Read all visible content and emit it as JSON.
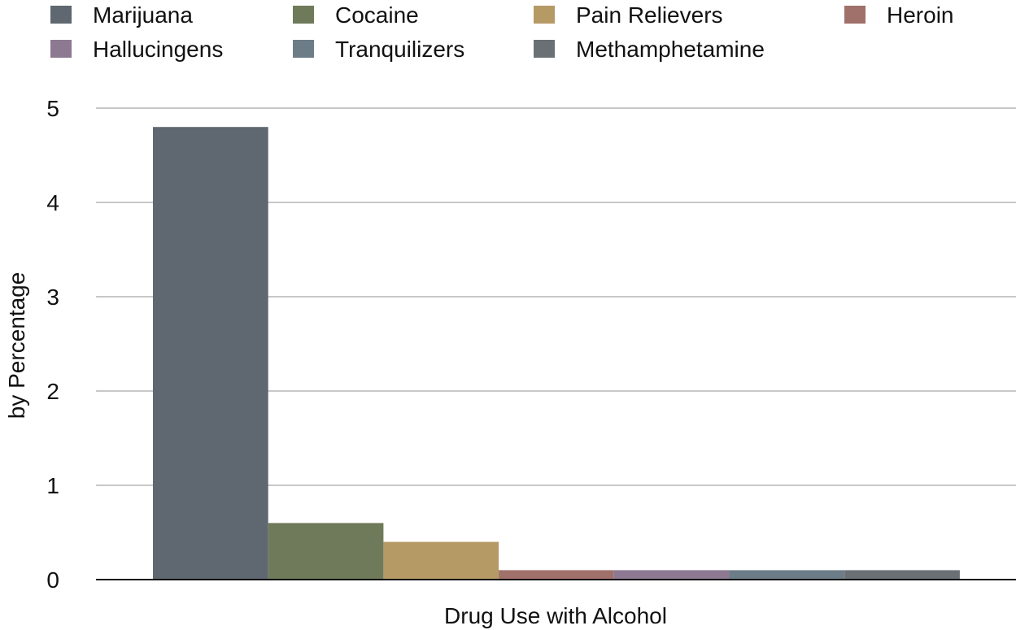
{
  "chart_data": {
    "type": "bar",
    "title": "",
    "xlabel": "Drug Use with Alcohol",
    "ylabel": "by Percentage",
    "ylim": [
      0,
      5
    ],
    "yticks": [
      0,
      1,
      2,
      3,
      4,
      5
    ],
    "grid": true,
    "legend_position": "top",
    "categories": [
      "Drug Use with Alcohol"
    ],
    "series": [
      {
        "name": "Marijuana",
        "values": [
          4.8
        ],
        "color": "#5f6870"
      },
      {
        "name": "Cocaine",
        "values": [
          0.6
        ],
        "color": "#6f7a5a"
      },
      {
        "name": "Pain Relievers",
        "values": [
          0.4
        ],
        "color": "#b59a66"
      },
      {
        "name": "Heroin",
        "values": [
          0.1
        ],
        "color": "#a0706a"
      },
      {
        "name": "Hallucingens",
        "values": [
          0.1
        ],
        "color": "#8d7a92"
      },
      {
        "name": "Tranquilizers",
        "values": [
          0.1
        ],
        "color": "#6d7d88"
      },
      {
        "name": "Methamphetamine",
        "values": [
          0.1
        ],
        "color": "#6a7074"
      }
    ]
  }
}
